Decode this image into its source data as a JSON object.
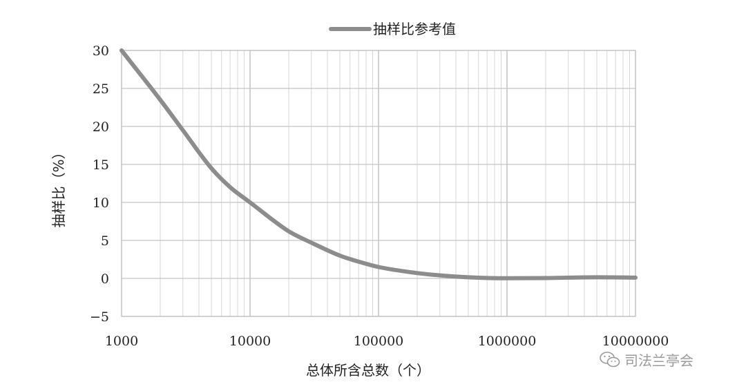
{
  "chart_data": {
    "type": "line",
    "xscale": "log",
    "xlim": [
      1000,
      10000000
    ],
    "ylim": [
      -5,
      30
    ],
    "y_ticks": [
      30,
      25,
      20,
      15,
      10,
      5,
      0,
      -5
    ],
    "x_ticks": [
      1000,
      10000,
      100000,
      1000000,
      10000000
    ],
    "y_tick_labels": [
      "30",
      "25",
      "20",
      "15",
      "10",
      "5",
      "0",
      "−5"
    ],
    "x_tick_labels": [
      "1000",
      "10000",
      "100000",
      "1000000",
      "10000000"
    ],
    "xlabel": "总体所含总数（个）",
    "ylabel": "抽样比（%）",
    "grid": true,
    "legend_position": "top-center",
    "series": [
      {
        "name": "抽样比参考值",
        "color": "#8c8c8c",
        "x": [
          1000,
          2000,
          3000,
          5000,
          7000,
          10000,
          20000,
          30000,
          50000,
          70000,
          100000,
          200000,
          300000,
          500000,
          1000000,
          2000000,
          5000000,
          10000000
        ],
        "y": [
          30,
          23.5,
          19.5,
          14.5,
          12,
          10,
          6.2,
          4.7,
          3,
          2.2,
          1.5,
          0.7,
          0.4,
          0.15,
          0.02,
          0.05,
          0.15,
          0.1
        ]
      }
    ]
  },
  "watermark": {
    "text": "司法兰亭会",
    "icon": "wechat-icon"
  }
}
